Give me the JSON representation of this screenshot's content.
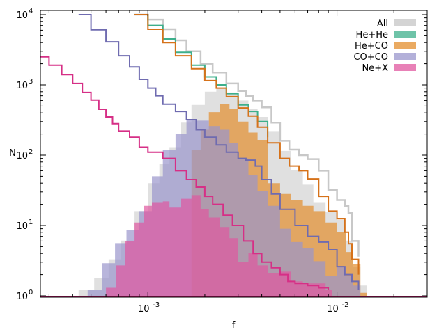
{
  "chart_data": {
    "type": "area",
    "title": "",
    "xlabel": "f",
    "ylabel": "N",
    "xscale": "log",
    "yscale": "log",
    "xlim": [
      0.00027,
      0.03
    ],
    "ylim": [
      0.9,
      10000
    ],
    "x_ticks": [
      {
        "value": 0.001,
        "base": "10",
        "exp": "-3"
      },
      {
        "value": 0.01,
        "base": "10",
        "exp": "-2"
      }
    ],
    "y_ticks": [
      {
        "value": 1,
        "base": "10",
        "exp": "0"
      },
      {
        "value": 10,
        "base": "10",
        "exp": "1"
      },
      {
        "value": 100,
        "base": "10",
        "exp": "2"
      },
      {
        "value": 1000,
        "base": "10",
        "exp": "3"
      },
      {
        "value": 10000,
        "base": "10",
        "exp": "4"
      }
    ],
    "legend_position": "top-right",
    "series": [
      {
        "name": "All",
        "color": "#cfcfcf",
        "fill_points": [
          [
            0.00043,
            1.2
          ],
          [
            0.00052,
            1.8
          ],
          [
            0.00062,
            3.3
          ],
          [
            0.00072,
            6.1
          ],
          [
            0.00085,
            16
          ],
          [
            0.001,
            40
          ],
          [
            0.00115,
            75
          ],
          [
            0.0013,
            130
          ],
          [
            0.0015,
            290
          ],
          [
            0.0017,
            520
          ],
          [
            0.002,
            800
          ],
          [
            0.0023,
            900
          ],
          [
            0.0026,
            780
          ],
          [
            0.003,
            600
          ],
          [
            0.0034,
            450
          ],
          [
            0.0038,
            350
          ],
          [
            0.0043,
            220
          ],
          [
            0.005,
            115
          ],
          [
            0.0057,
            62
          ],
          [
            0.0066,
            38
          ],
          [
            0.0075,
            21
          ],
          [
            0.0087,
            15.5
          ],
          [
            0.01,
            12
          ],
          [
            0.0112,
            6.1
          ],
          [
            0.0122,
            2.6
          ],
          [
            0.0133,
            1.4
          ]
        ],
        "curve_points": [
          [
            0.00085,
            10000
          ],
          [
            0.001,
            8500
          ],
          [
            0.0012,
            6200
          ],
          [
            0.0014,
            4300
          ],
          [
            0.0016,
            3000
          ],
          [
            0.0019,
            2000
          ],
          [
            0.0022,
            1500
          ],
          [
            0.0026,
            1050
          ],
          [
            0.003,
            820
          ],
          [
            0.0033,
            690
          ],
          [
            0.0036,
            600
          ],
          [
            0.004,
            480
          ],
          [
            0.0045,
            290
          ],
          [
            0.005,
            160
          ],
          [
            0.0056,
            120
          ],
          [
            0.0063,
            100
          ],
          [
            0.007,
            88
          ],
          [
            0.008,
            60
          ],
          [
            0.009,
            32
          ],
          [
            0.01,
            23
          ],
          [
            0.011,
            19
          ],
          [
            0.0115,
            15
          ],
          [
            0.012,
            6
          ],
          [
            0.013,
            3.6
          ]
        ]
      },
      {
        "name": "He+He",
        "color": "#3daf8b",
        "curve_points": [
          [
            0.00085,
            10000
          ],
          [
            0.001,
            7000
          ],
          [
            0.0012,
            4500
          ],
          [
            0.0014,
            2900
          ],
          [
            0.0017,
            1900
          ],
          [
            0.002,
            1300
          ],
          [
            0.0023,
            1000
          ],
          [
            0.0026,
            750
          ],
          [
            0.003,
            520
          ],
          [
            0.0034,
            420
          ],
          [
            0.0038,
            300
          ],
          [
            0.0043,
            180
          ]
        ]
      },
      {
        "name": "He+CO",
        "color": "#e38d2c",
        "fill_points": [
          [
            0.0017,
            120
          ],
          [
            0.0019,
            230
          ],
          [
            0.0021,
            410
          ],
          [
            0.0024,
            530
          ],
          [
            0.0027,
            450
          ],
          [
            0.003,
            300
          ],
          [
            0.0034,
            210
          ],
          [
            0.0038,
            165
          ],
          [
            0.0043,
            40
          ],
          [
            0.005,
            28
          ],
          [
            0.0057,
            23
          ],
          [
            0.0066,
            19
          ],
          [
            0.0075,
            16
          ],
          [
            0.0087,
            11
          ],
          [
            0.01,
            8
          ],
          [
            0.0112,
            4.2
          ],
          [
            0.0122,
            2.8
          ],
          [
            0.0133,
            1.1
          ]
        ],
        "curve_points": [
          [
            0.00085,
            10000
          ],
          [
            0.001,
            6200
          ],
          [
            0.0012,
            4000
          ],
          [
            0.0014,
            2600
          ],
          [
            0.0017,
            1700
          ],
          [
            0.002,
            1150
          ],
          [
            0.0023,
            900
          ],
          [
            0.0026,
            680
          ],
          [
            0.003,
            470
          ],
          [
            0.0034,
            360
          ],
          [
            0.0038,
            250
          ],
          [
            0.0043,
            150
          ],
          [
            0.005,
            90
          ],
          [
            0.0056,
            70
          ],
          [
            0.0063,
            60
          ],
          [
            0.007,
            46
          ],
          [
            0.008,
            26
          ],
          [
            0.009,
            16
          ],
          [
            0.01,
            12.5
          ],
          [
            0.011,
            8
          ],
          [
            0.0115,
            5.5
          ],
          [
            0.012,
            3.3
          ],
          [
            0.013,
            2
          ]
        ]
      },
      {
        "name": "CO+CO",
        "color": "#9a96cc",
        "fill_points": [
          [
            0.00048,
            1.2
          ],
          [
            0.00057,
            2.9
          ],
          [
            0.00067,
            5.6
          ],
          [
            0.00077,
            8.7
          ],
          [
            0.0009,
            16
          ],
          [
            0.00105,
            50
          ],
          [
            0.0012,
            120
          ],
          [
            0.0014,
            200
          ],
          [
            0.0016,
            320
          ],
          [
            0.0018,
            310
          ],
          [
            0.0021,
            260
          ],
          [
            0.0024,
            230
          ],
          [
            0.0027,
            150
          ],
          [
            0.003,
            90
          ],
          [
            0.0034,
            52
          ],
          [
            0.0038,
            31
          ],
          [
            0.0043,
            19
          ],
          [
            0.005,
            9
          ],
          [
            0.0057,
            5.8
          ],
          [
            0.0066,
            4.8
          ],
          [
            0.0075,
            3.1
          ],
          [
            0.0087,
            1.9
          ],
          [
            0.01,
            2.6
          ],
          [
            0.0112,
            1.9
          ],
          [
            0.0122,
            1.4
          ],
          [
            0.0133,
            1
          ]
        ],
        "curve_points": [
          [
            0.00043,
            10000
          ],
          [
            0.0005,
            6100
          ],
          [
            0.0006,
            4100
          ],
          [
            0.0007,
            2600
          ],
          [
            0.0008,
            1800
          ],
          [
            0.0009,
            1200
          ],
          [
            0.001,
            900
          ],
          [
            0.0011,
            700
          ],
          [
            0.0012,
            530
          ],
          [
            0.0014,
            420
          ],
          [
            0.0016,
            320
          ],
          [
            0.0018,
            230
          ],
          [
            0.002,
            180
          ],
          [
            0.0023,
            140
          ],
          [
            0.0026,
            110
          ],
          [
            0.003,
            90
          ],
          [
            0.0033,
            85
          ],
          [
            0.0037,
            70
          ],
          [
            0.004,
            45
          ],
          [
            0.0045,
            28
          ],
          [
            0.005,
            17
          ],
          [
            0.006,
            10
          ],
          [
            0.007,
            7
          ],
          [
            0.008,
            5.8
          ],
          [
            0.009,
            4.5
          ],
          [
            0.01,
            2.6
          ],
          [
            0.011,
            2
          ],
          [
            0.012,
            1.6
          ],
          [
            0.013,
            1.2
          ]
        ]
      },
      {
        "name": "Ne+X",
        "color": "#e0579f",
        "fill_points": [
          [
            0.0006,
            1.3
          ],
          [
            0.00068,
            2.7
          ],
          [
            0.00076,
            6
          ],
          [
            0.00085,
            11
          ],
          [
            0.00095,
            19
          ],
          [
            0.00105,
            21
          ],
          [
            0.0012,
            22
          ],
          [
            0.0013,
            18
          ],
          [
            0.0015,
            24
          ],
          [
            0.0017,
            27
          ],
          [
            0.0019,
            17
          ],
          [
            0.0021,
            13
          ],
          [
            0.0024,
            9.5
          ],
          [
            0.0027,
            6.6
          ],
          [
            0.003,
            3
          ],
          [
            0.0034,
            4.1
          ],
          [
            0.0038,
            2.7
          ],
          [
            0.0043,
            2.1
          ],
          [
            0.005,
            2.2
          ],
          [
            0.0057,
            1.6
          ],
          [
            0.0066,
            1.5
          ],
          [
            0.0075,
            1.5
          ],
          [
            0.0087,
            1.2
          ]
        ],
        "curve_points": [
          [
            0.00027,
            2500
          ],
          [
            0.0003,
            1900
          ],
          [
            0.00035,
            1400
          ],
          [
            0.0004,
            1050
          ],
          [
            0.00045,
            780
          ],
          [
            0.0005,
            610
          ],
          [
            0.00055,
            450
          ],
          [
            0.0006,
            350
          ],
          [
            0.00065,
            280
          ],
          [
            0.0007,
            220
          ],
          [
            0.0008,
            180
          ],
          [
            0.0009,
            130
          ],
          [
            0.001,
            110
          ],
          [
            0.0012,
            90
          ],
          [
            0.0014,
            60
          ],
          [
            0.0016,
            45
          ],
          [
            0.0018,
            35
          ],
          [
            0.002,
            26
          ],
          [
            0.0022,
            20
          ],
          [
            0.0025,
            14
          ],
          [
            0.0028,
            10
          ],
          [
            0.0032,
            6
          ],
          [
            0.0036,
            4
          ],
          [
            0.004,
            3
          ],
          [
            0.0045,
            2.5
          ],
          [
            0.005,
            2
          ],
          [
            0.0055,
            1.6
          ],
          [
            0.006,
            1.5
          ],
          [
            0.007,
            1.4
          ],
          [
            0.008,
            1.3
          ],
          [
            0.009,
            1.2
          ]
        ]
      }
    ]
  }
}
